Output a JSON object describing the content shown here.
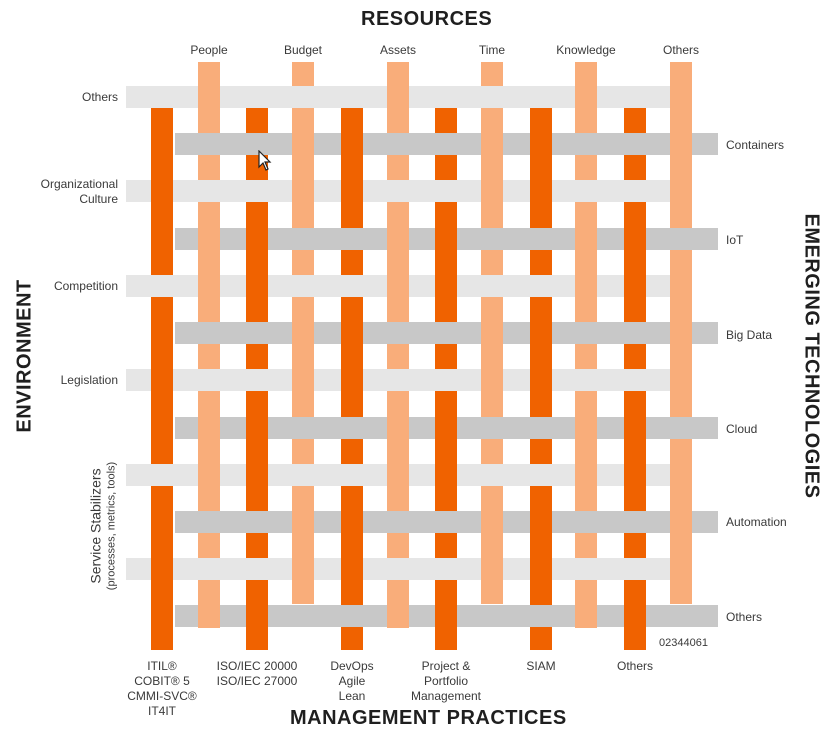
{
  "titles": {
    "top": "RESOURCES",
    "bottom": "MANAGEMENT PRACTICES",
    "left": "ENVIRONMENT",
    "right": "EMERGING TECHNOLOGIES"
  },
  "resources": [
    "People",
    "Budget",
    "Assets",
    "Time",
    "Knowledge",
    "Others"
  ],
  "environment": [
    "Others",
    "Organizational\nCulture",
    "Competition",
    "Legislation"
  ],
  "service_stabilizers": {
    "title": "Service Stabilizers",
    "subtitle": "(processes, metrics, tools)"
  },
  "emerging_technologies": [
    "Containers",
    "IoT",
    "Big Data",
    "Cloud",
    "Automation",
    "Others"
  ],
  "management_practices": [
    "ITIL®\nCOBIT® 5\nCMMI-SVC®\nIT4IT",
    "ISO/IEC 20000\nISO/IEC 27000",
    "DevOps\nAgile\nLean",
    "Project &\nPortfolio\nManagement",
    "SIAM",
    "Others"
  ],
  "figure_id": "02344061",
  "colors": {
    "light_orange": "#F9AD7A",
    "dark_orange": "#F06200",
    "light_gray": "#E6E6E6",
    "mid_gray": "#C8C8C8"
  }
}
